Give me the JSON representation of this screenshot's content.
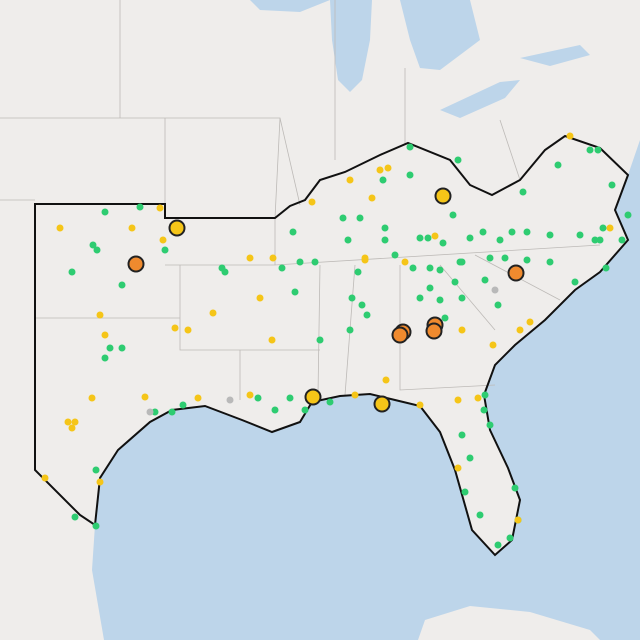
{
  "map": {
    "land_color": "#efedeb",
    "water_color": "#bdd5ea",
    "outline_color": "#111111",
    "small_marker_colors": [
      "#2ecc71",
      "#f5c518",
      "#b9b9b9"
    ],
    "large_marker_colors": [
      "#f5c518",
      "#ef8a2e"
    ],
    "large_marker_stroke": "#222222"
  }
}
